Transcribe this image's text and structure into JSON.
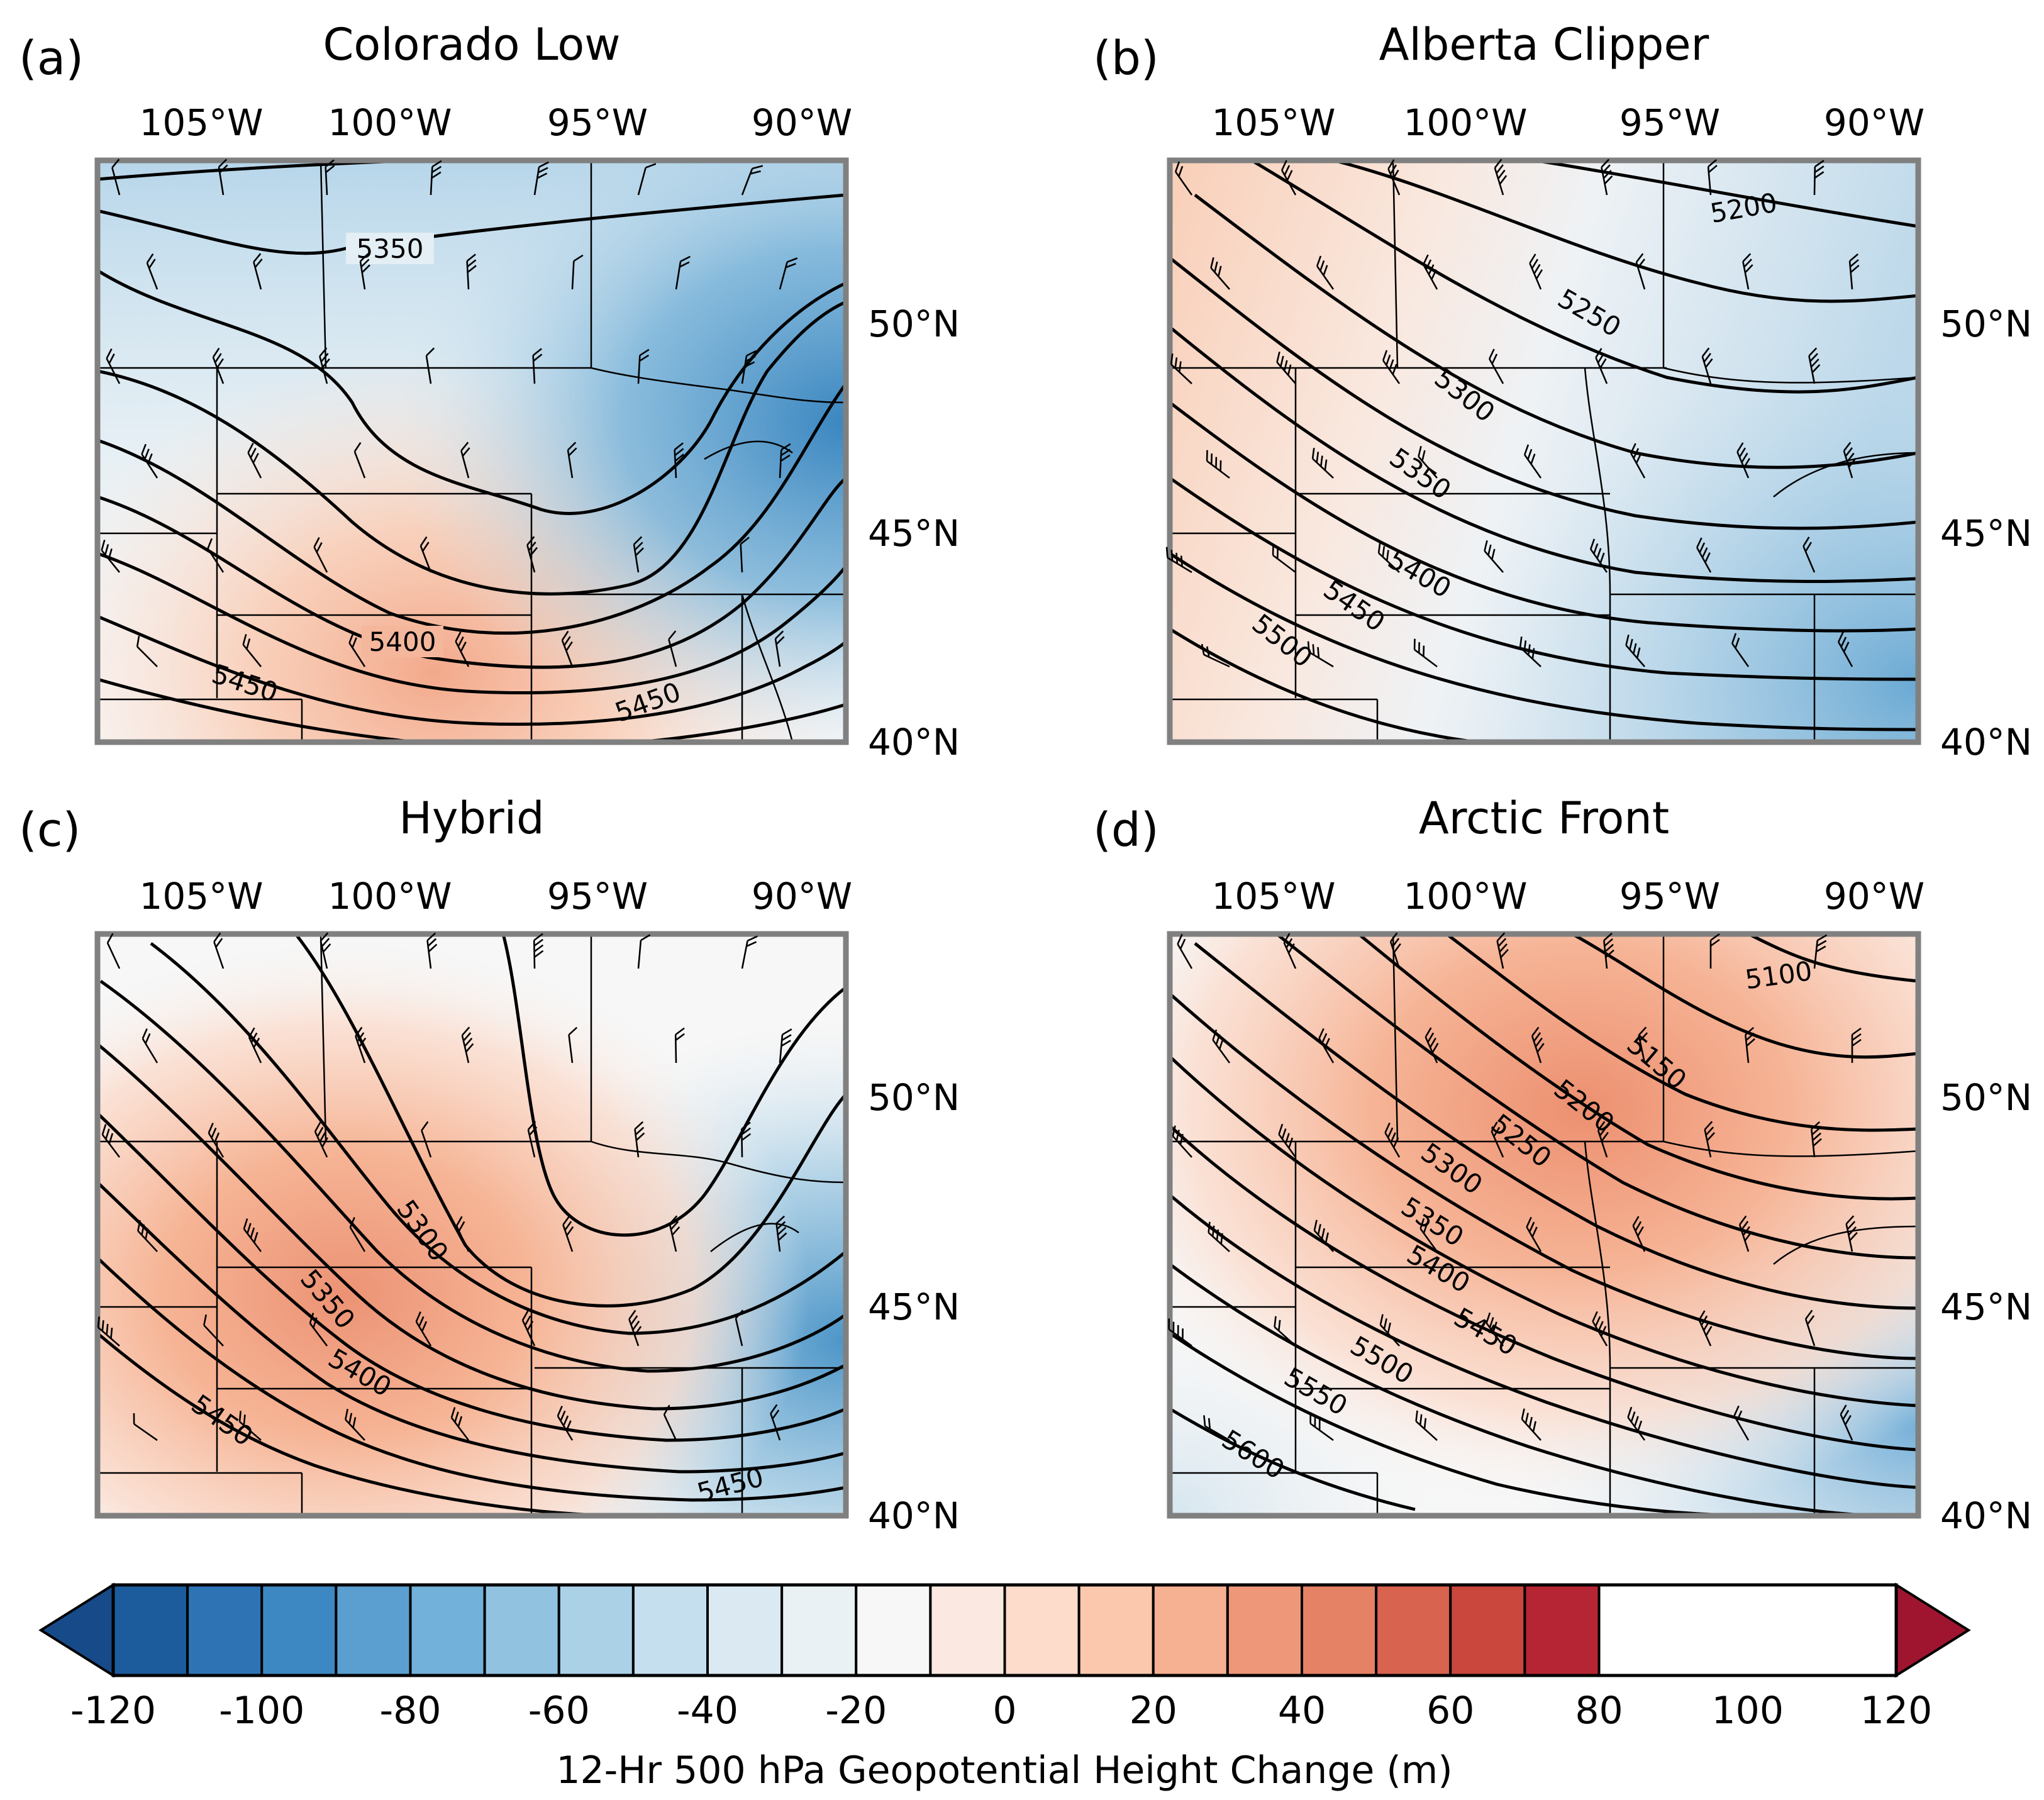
{
  "figure": {
    "panels": [
      {
        "letter": "(a)",
        "title": "Colorado Low",
        "contour_labels": [
          "5350",
          "5400",
          "5450",
          "5450"
        ]
      },
      {
        "letter": "(b)",
        "title": "Alberta Clipper",
        "contour_labels": [
          "5200",
          "5250",
          "5300",
          "5350",
          "5400",
          "5450",
          "5500"
        ]
      },
      {
        "letter": "(c)",
        "title": "Hybrid",
        "contour_labels": [
          "5300",
          "5350",
          "5400",
          "5450",
          "5450"
        ]
      },
      {
        "letter": "(d)",
        "title": "Arctic Front",
        "contour_labels": [
          "5100",
          "5150",
          "5200",
          "5250",
          "5300",
          "5350",
          "5400",
          "5450",
          "5500",
          "5550",
          "5600"
        ]
      }
    ],
    "lon_ticks": [
      "105°W",
      "100°W",
      "95°W",
      "90°W"
    ],
    "lat_ticks": [
      "50°N",
      "45°N",
      "40°N"
    ],
    "map_extent": {
      "lon": [
        -107,
        -88
      ],
      "lat": [
        40,
        54
      ]
    },
    "colorbar": {
      "title": "12-Hr 500 hPa Geopotential Height Change (m)",
      "ticks": [
        "-120",
        "-100",
        "-80",
        "-60",
        "-40",
        "-20",
        "0",
        "20",
        "40",
        "60",
        "80",
        "100",
        "120"
      ],
      "range": [
        -120,
        120
      ],
      "step": 10,
      "extend": "both",
      "colors": [
        "#1c5b9c",
        "#2e74b5",
        "#3d88c2",
        "#5a9fcf",
        "#72b1d9",
        "#91c3e1",
        "#abd1e7",
        "#c5dfee",
        "#dbeaf2",
        "#e9f1f4",
        "#f7f7f7",
        "#fbe9e1",
        "#fddccc",
        "#fbc8ae",
        "#f6b092",
        "#ee9879",
        "#e58266",
        "#d8634f",
        "#c9473d",
        "#b52533"
      ],
      "under_color": "#174a88",
      "over_color": "#9f1530"
    },
    "colors": {
      "frame": "#808080",
      "contour": "#000000",
      "border": "#000000"
    }
  }
}
